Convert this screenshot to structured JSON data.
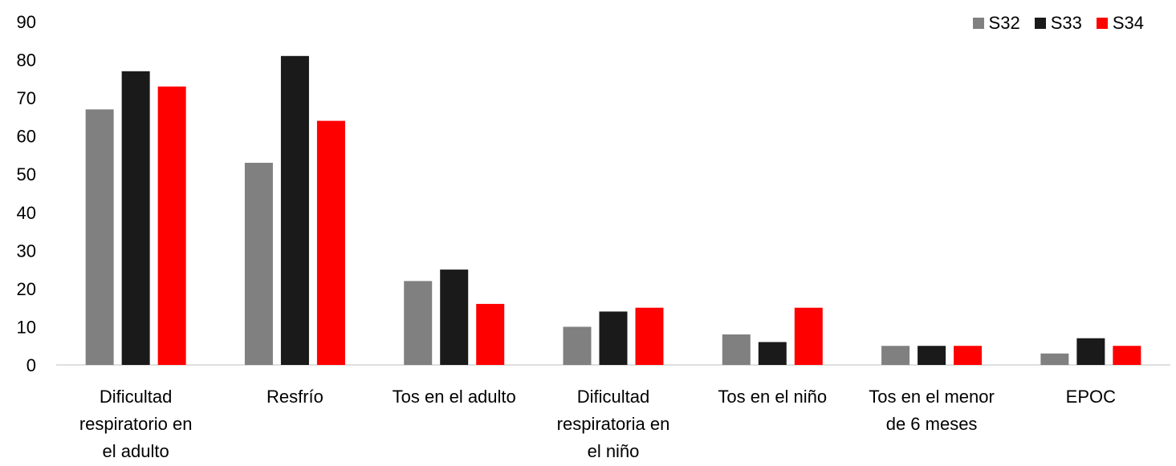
{
  "chart_data": {
    "type": "bar",
    "title": "",
    "xlabel": "",
    "ylabel": "",
    "ylim": [
      0,
      90
    ],
    "yticks": [
      0,
      10,
      20,
      30,
      40,
      50,
      60,
      70,
      80,
      90
    ],
    "grid": false,
    "legend_position": "top-right",
    "categories": [
      [
        "Dificultad",
        "respiratorio en",
        "el adulto"
      ],
      [
        "Resfrío"
      ],
      [
        "Tos en el adulto"
      ],
      [
        "Dificultad",
        "respiratoria en",
        "el niño"
      ],
      [
        "Tos en el niño"
      ],
      [
        "Tos en el menor",
        "de 6 meses"
      ],
      [
        "EPOC"
      ]
    ],
    "series": [
      {
        "name": "S32",
        "color": "#808080",
        "values": [
          67,
          53,
          22,
          10,
          8,
          5,
          3
        ]
      },
      {
        "name": "S33",
        "color": "#1a1a1a",
        "values": [
          77,
          81,
          25,
          14,
          6,
          5,
          7
        ]
      },
      {
        "name": "S34",
        "color": "#ff0000",
        "values": [
          73,
          64,
          16,
          15,
          15,
          5,
          5
        ]
      }
    ]
  }
}
